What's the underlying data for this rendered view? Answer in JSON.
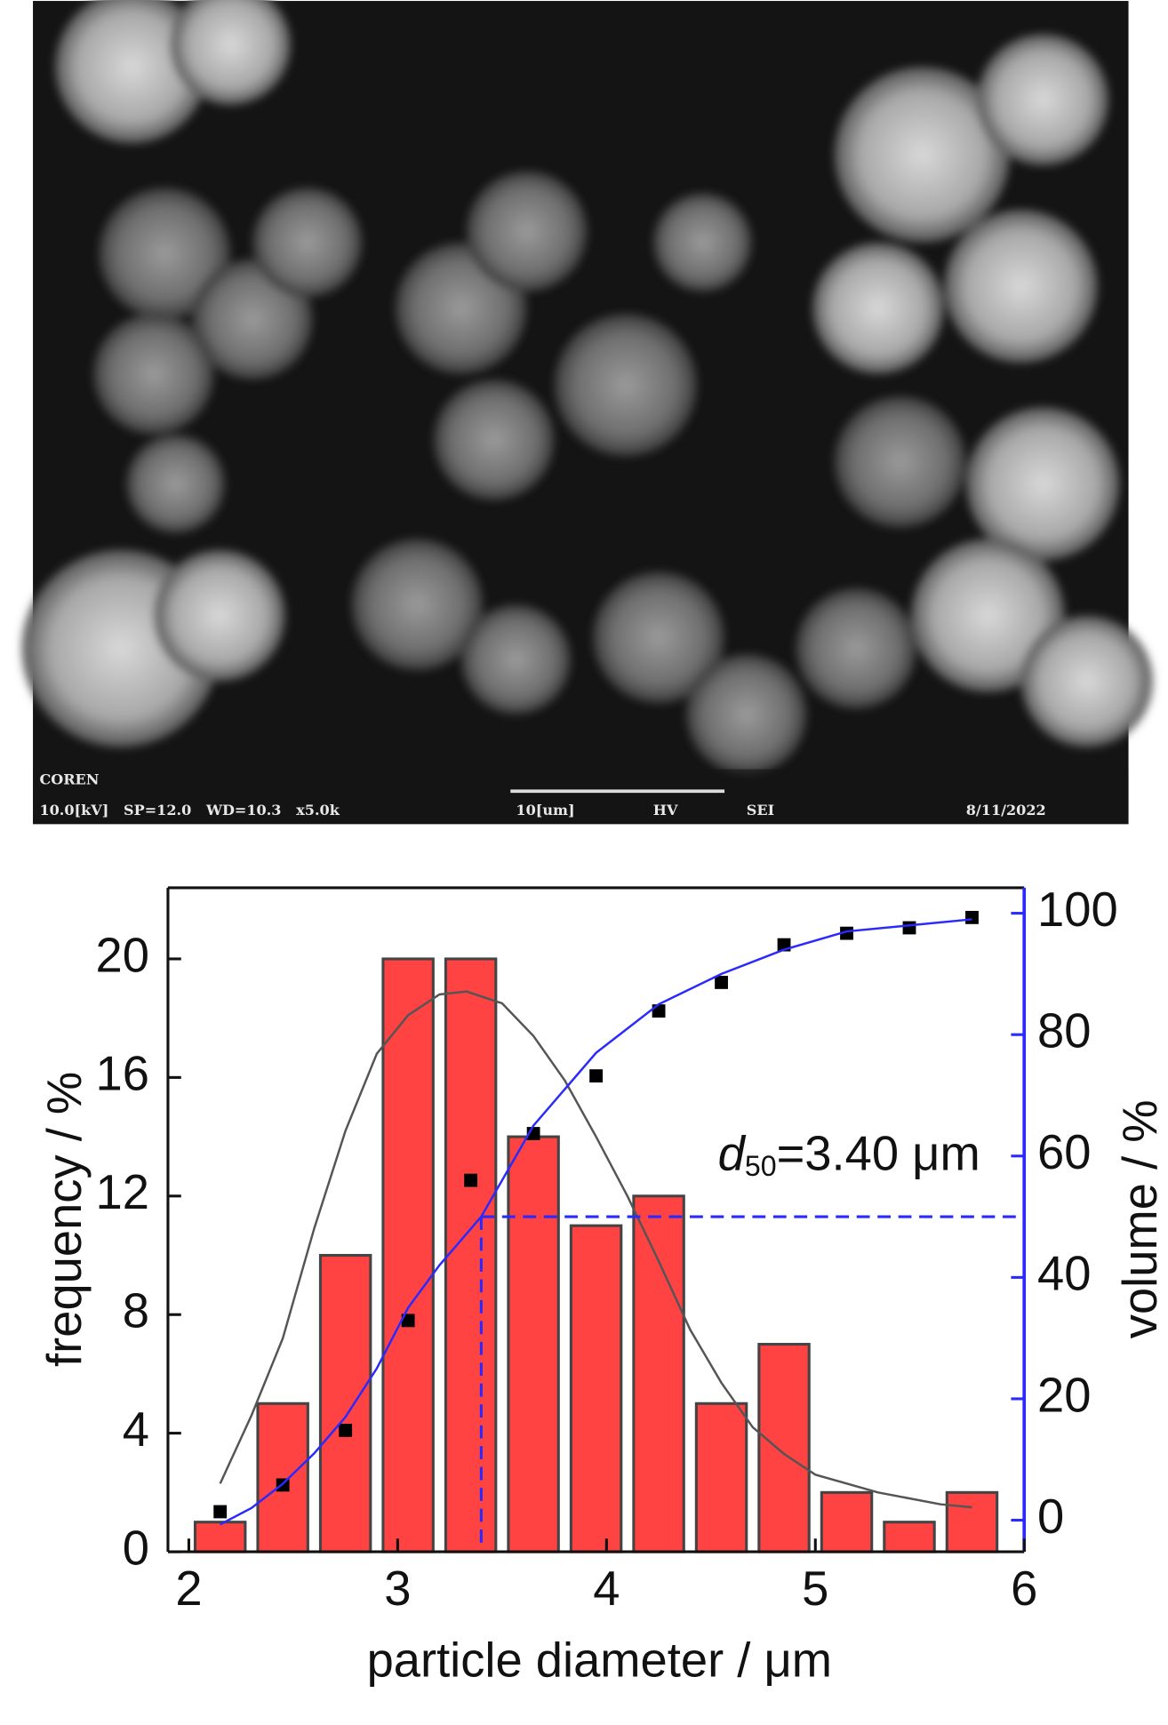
{
  "sem_image": {
    "labels": [
      "COREN",
      "10.0[kV]   SP=12.0   WD=10.3   x5.0k",
      "10[um]",
      "HV",
      "SEI",
      "8/11/2022"
    ]
  },
  "chart_data": {
    "type": "bar",
    "xlabel": "particle diameter / μm",
    "ylabel": "frequency / %",
    "y2label": "volume / %",
    "xlim": [
      1.9,
      6
    ],
    "xticks": [
      2,
      3,
      4,
      5,
      6
    ],
    "ylim": [
      0,
      22.4
    ],
    "yticks": [
      0,
      4,
      8,
      12,
      16,
      20
    ],
    "y2lim": [
      -5.2,
      104.2
    ],
    "y2ticks": [
      0,
      20,
      40,
      60,
      80,
      100
    ],
    "bar_width": 0.24,
    "series": [
      {
        "type": "bar",
        "color": "#ff4242",
        "x": [
          2.15,
          2.45,
          2.75,
          3.05,
          3.35,
          3.65,
          3.95,
          4.25,
          4.55,
          4.85,
          5.15,
          5.45,
          5.75
        ],
        "values": [
          1,
          5,
          10,
          20,
          20,
          14,
          11,
          12,
          5,
          7,
          2,
          1,
          2
        ]
      },
      {
        "type": "line",
        "color": "#555555",
        "x": [
          2.15,
          2.3,
          2.45,
          2.6,
          2.75,
          2.9,
          3.05,
          3.2,
          3.33,
          3.5,
          3.65,
          3.8,
          3.95,
          4.1,
          4.25,
          4.4,
          4.55,
          4.7,
          4.85,
          5.0,
          5.15,
          5.3,
          5.45,
          5.6,
          5.75
        ],
        "values": [
          2.3,
          4.6,
          7.2,
          10.9,
          14.2,
          16.8,
          18.1,
          18.8,
          18.9,
          18.5,
          17.4,
          15.9,
          14.0,
          12.0,
          9.8,
          7.5,
          5.7,
          4.2,
          3.3,
          2.6,
          2.3,
          2.0,
          1.8,
          1.6,
          1.5
        ]
      },
      {
        "type": "scatter",
        "axis": "y2",
        "color": "#000000",
        "x": [
          2.15,
          2.45,
          2.75,
          3.05,
          3.35,
          3.65,
          3.95,
          4.25,
          4.55,
          4.85,
          5.15,
          5.45,
          5.75
        ],
        "values": [
          1.4,
          5.8,
          14.8,
          32.9,
          56,
          63.7,
          73.2,
          83.9,
          88.6,
          94.8,
          96.7,
          97.6,
          99.3
        ]
      },
      {
        "type": "line",
        "axis": "y2",
        "color": "#2a2aff",
        "x": [
          2.15,
          2.3,
          2.45,
          2.6,
          2.75,
          2.9,
          3.05,
          3.2,
          3.4,
          3.65,
          3.95,
          4.25,
          4.55,
          4.85,
          5.15,
          5.45,
          5.75
        ],
        "values": [
          -0.7,
          2,
          6,
          11,
          17,
          25,
          35,
          42,
          50,
          65,
          77,
          85,
          90,
          94,
          97,
          98,
          99
        ]
      }
    ],
    "annotation": {
      "italic": "d",
      "subscript": "50",
      "text": "=3.40 μm",
      "x": 3.4,
      "y": 50,
      "color": "#2a2aff"
    }
  }
}
